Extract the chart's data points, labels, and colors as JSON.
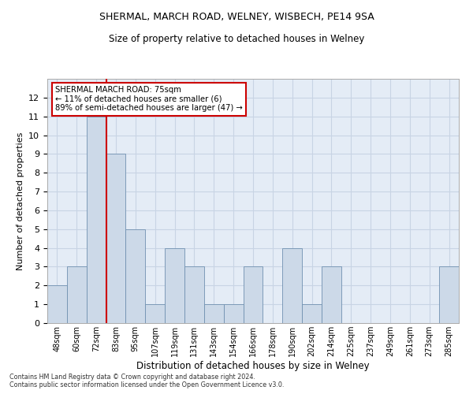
{
  "title1": "SHERMAL, MARCH ROAD, WELNEY, WISBECH, PE14 9SA",
  "title2": "Size of property relative to detached houses in Welney",
  "xlabel": "Distribution of detached houses by size in Welney",
  "ylabel": "Number of detached properties",
  "categories": [
    "48sqm",
    "60sqm",
    "72sqm",
    "83sqm",
    "95sqm",
    "107sqm",
    "119sqm",
    "131sqm",
    "143sqm",
    "154sqm",
    "166sqm",
    "178sqm",
    "190sqm",
    "202sqm",
    "214sqm",
    "225sqm",
    "237sqm",
    "249sqm",
    "261sqm",
    "273sqm",
    "285sqm"
  ],
  "values": [
    2,
    3,
    11,
    9,
    5,
    1,
    4,
    3,
    1,
    1,
    3,
    0,
    4,
    1,
    3,
    0,
    0,
    0,
    0,
    0,
    3
  ],
  "bar_color": "#ccd9e8",
  "bar_edge_color": "#7090b0",
  "red_line_x": 2.5,
  "annotation_text": "SHERMAL MARCH ROAD: 75sqm\n← 11% of detached houses are smaller (6)\n89% of semi-detached houses are larger (47) →",
  "annotation_box_color": "#ffffff",
  "annotation_box_edge": "#cc0000",
  "footer1": "Contains HM Land Registry data © Crown copyright and database right 2024.",
  "footer2": "Contains public sector information licensed under the Open Government Licence v3.0.",
  "ylim": [
    0,
    13
  ],
  "yticks": [
    0,
    1,
    2,
    3,
    4,
    5,
    6,
    7,
    8,
    9,
    10,
    11,
    12,
    13
  ],
  "grid_color": "#c8d4e4",
  "bg_color": "#e4ecf6"
}
